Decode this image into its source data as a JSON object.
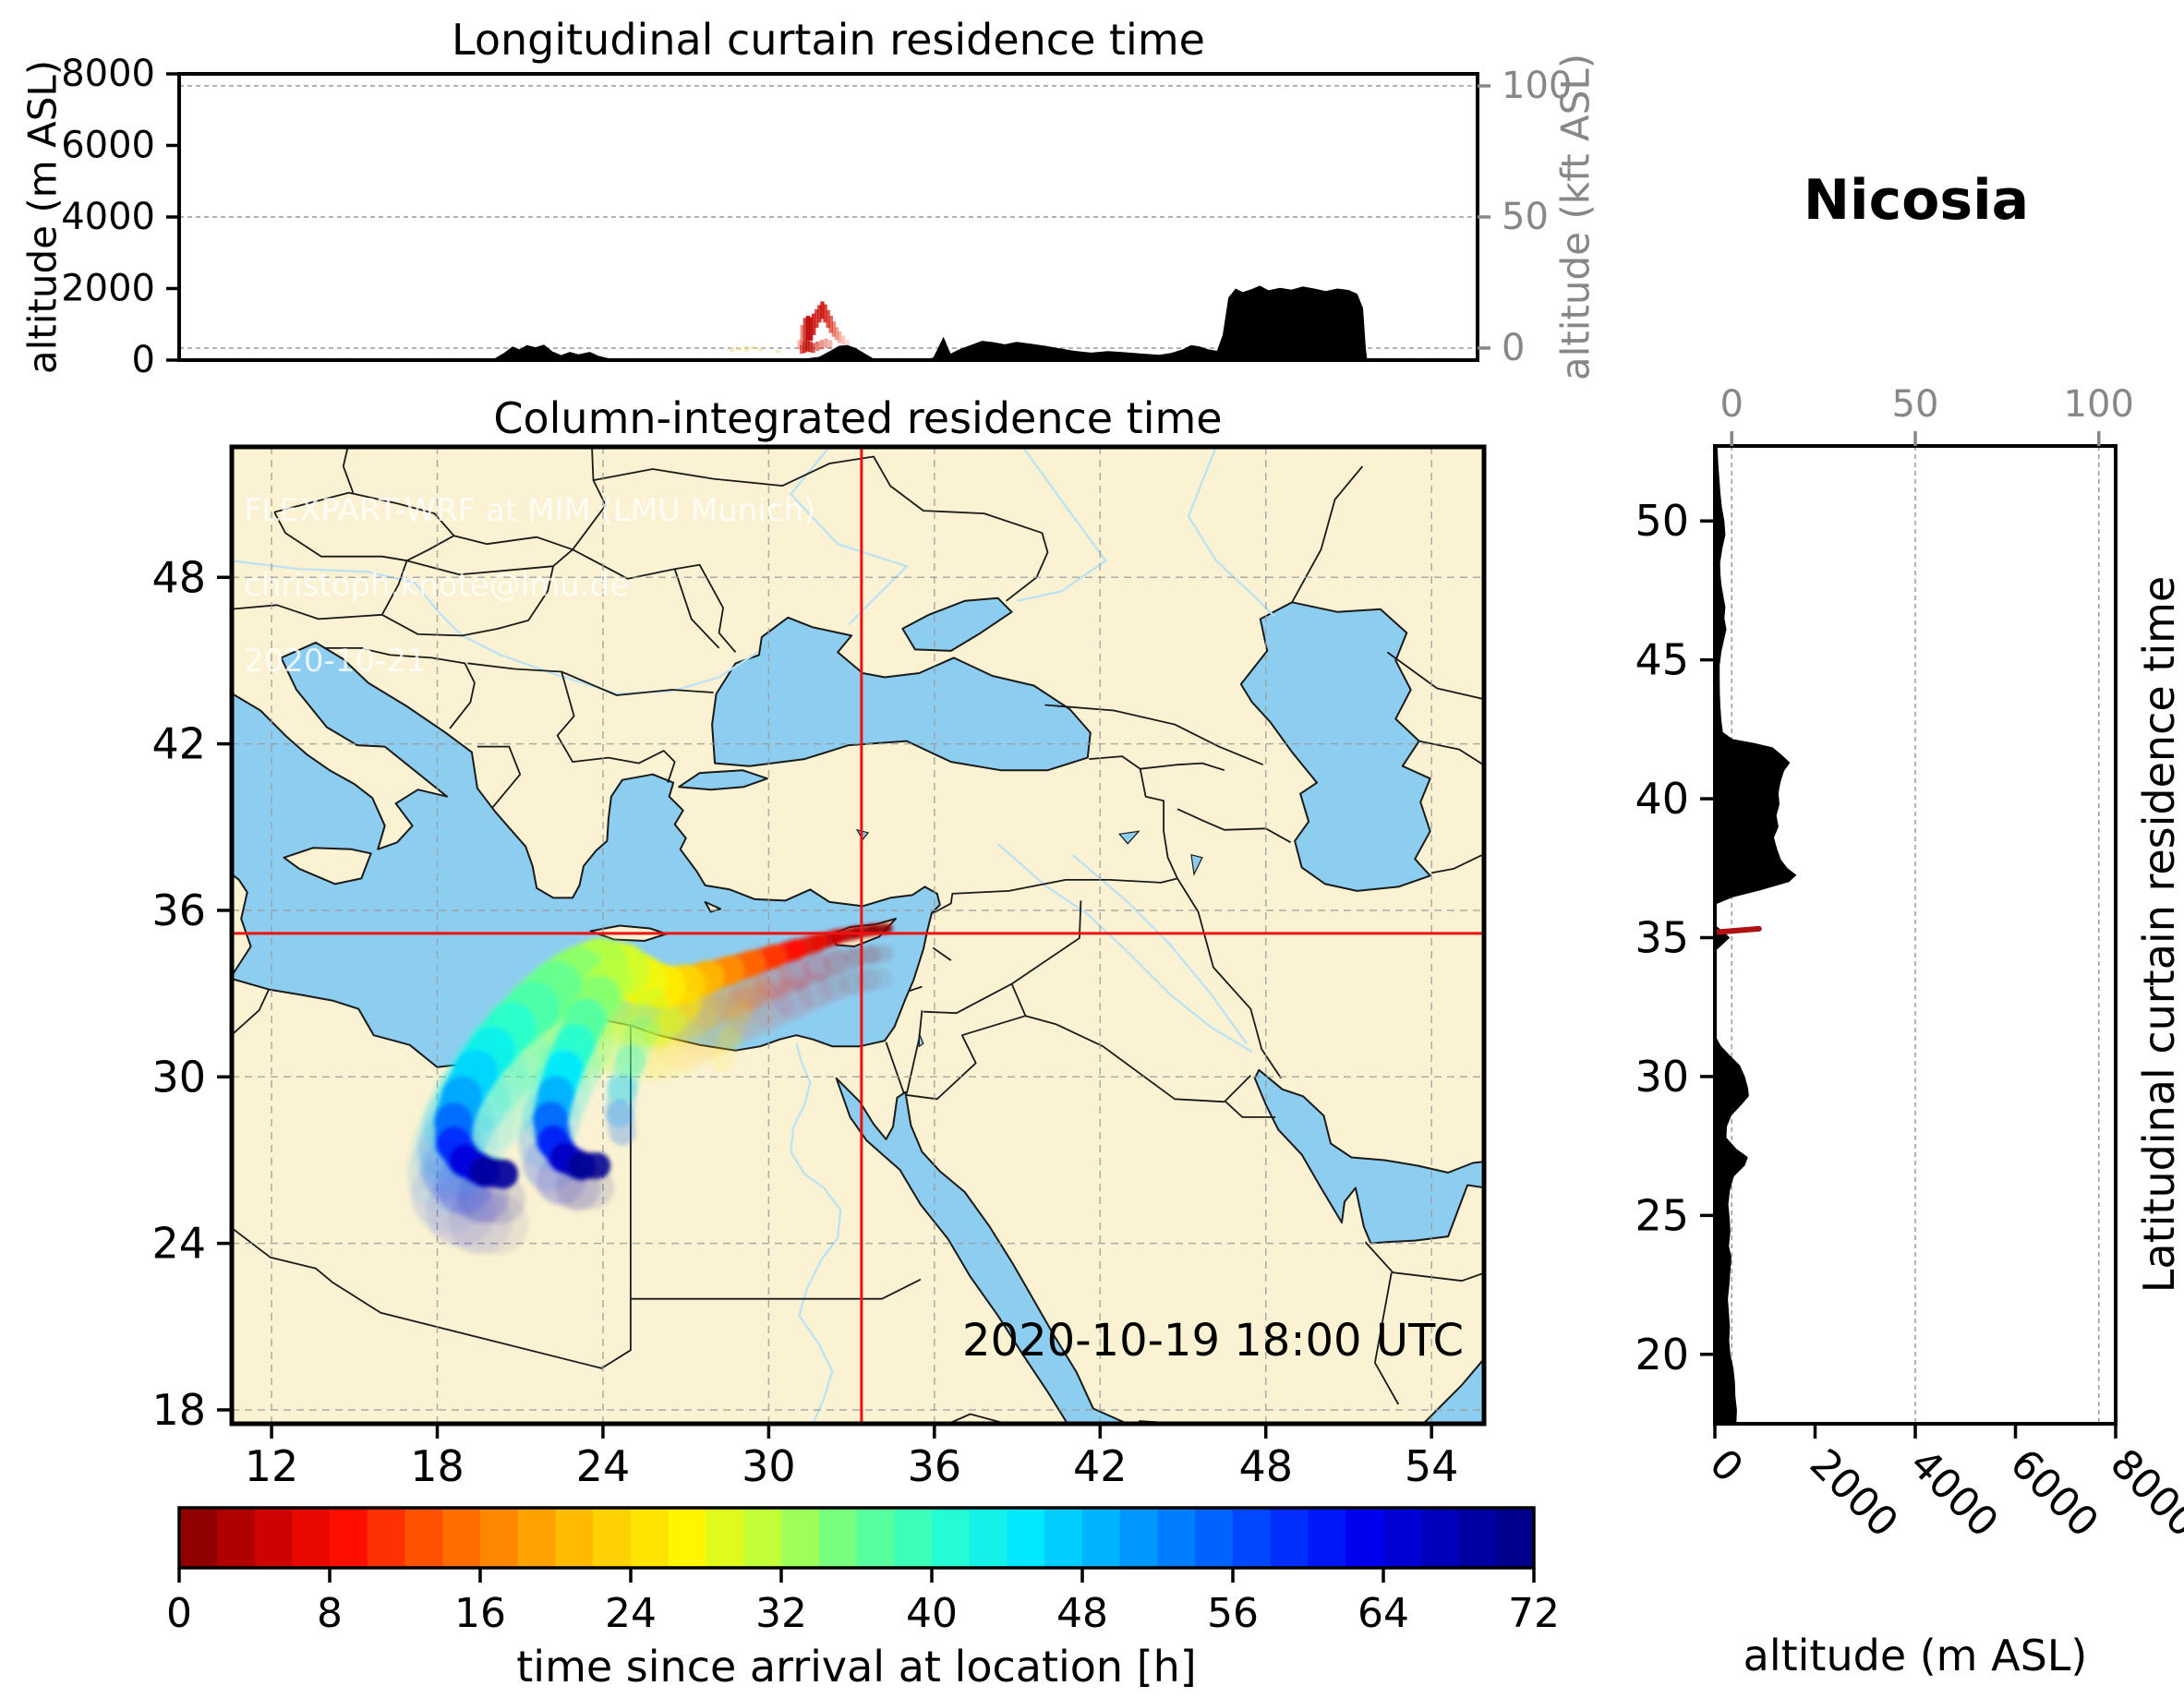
{
  "titles": {
    "longitudinal": "Longitudinal curtain residence time",
    "map": "Column-integrated residence time",
    "station": "Nicosia"
  },
  "watermark": {
    "line1": "FLEXPART-WRF at MIM (LMU Munich)",
    "line2": "christoph.knote@lmu.de",
    "line3": "2020-10-21"
  },
  "timestamp": "2020-10-19 18:00 UTC",
  "axes": {
    "alt_m_label": "altitude (m ASL)",
    "alt_kft_label": "altitude (kft ASL)",
    "alt_m_label_right": "altitude (m ASL)",
    "lat_curtain_label": "Latitudinal curtain residence time"
  },
  "colorbar": {
    "label": "time since arrival at location [h]",
    "ticks": [
      0,
      8,
      16,
      24,
      32,
      40,
      48,
      56,
      64,
      72
    ],
    "min": 0,
    "max": 72,
    "n_cells": 36
  },
  "colors": {
    "land": "#faf2d2",
    "water": "#8dcef0",
    "river": "#b9e2f6",
    "border": "#1a1a1a",
    "grid": "#9a9a9a",
    "crosshair": "#ee1111",
    "terrain": "#000000",
    "kft_axis": "#878787",
    "frame": "#000000"
  },
  "chart_data": {
    "type": "residence_time_dispersion_figure",
    "station": {
      "name": "Nicosia",
      "lon": 33.36,
      "lat": 35.17
    },
    "timestamp": "2020-10-19 18:00 UTC",
    "map": {
      "lon_range": [
        10.56,
        55.9
      ],
      "lat_range": [
        17.5,
        52.7
      ],
      "lon_ticks": [
        12,
        18,
        24,
        30,
        36,
        42,
        48,
        54
      ],
      "lat_ticks": [
        18,
        24,
        30,
        36,
        42,
        48
      ],
      "crosshair": {
        "lon": 33.36,
        "lat": 35.17
      }
    },
    "altitude_axis": {
      "range_m": [
        0,
        8000
      ],
      "ticks_m": [
        0,
        2000,
        4000,
        6000,
        8000
      ],
      "ticks_kft": [
        0,
        50,
        100
      ],
      "kft_fracs": [
        0.042,
        0.5,
        0.958
      ]
    },
    "lat_profile_ticks": [
      20,
      25,
      30,
      35,
      40,
      45,
      50
    ],
    "colormap_stops": [
      [
        0,
        "#800000"
      ],
      [
        4.5,
        "#c80000"
      ],
      [
        9,
        "#ff1000"
      ],
      [
        13.5,
        "#ff5a00"
      ],
      [
        18,
        "#ff9400"
      ],
      [
        22.5,
        "#ffce00"
      ],
      [
        27,
        "#fff600"
      ],
      [
        31.5,
        "#baff3c"
      ],
      [
        36,
        "#64ff90"
      ],
      [
        40.5,
        "#28ffcd"
      ],
      [
        45,
        "#00e8ff"
      ],
      [
        49.5,
        "#00acff"
      ],
      [
        54,
        "#0070ff"
      ],
      [
        58.5,
        "#0034ff"
      ],
      [
        63,
        "#0000f0"
      ],
      [
        67.5,
        "#0000b4"
      ],
      [
        72,
        "#000080"
      ]
    ],
    "terrain_longitudinal": [
      [
        10.56,
        0
      ],
      [
        21.2,
        0
      ],
      [
        21.6,
        60
      ],
      [
        21.9,
        200
      ],
      [
        22.2,
        380
      ],
      [
        22.45,
        300
      ],
      [
        22.7,
        420
      ],
      [
        23.0,
        360
      ],
      [
        23.3,
        430
      ],
      [
        23.6,
        240
      ],
      [
        23.9,
        140
      ],
      [
        24.2,
        230
      ],
      [
        24.5,
        160
      ],
      [
        24.9,
        230
      ],
      [
        25.2,
        120
      ],
      [
        25.6,
        40
      ],
      [
        26.0,
        0
      ],
      [
        31.9,
        0
      ],
      [
        32.3,
        30
      ],
      [
        32.9,
        90
      ],
      [
        33.3,
        260
      ],
      [
        33.6,
        400
      ],
      [
        33.9,
        420
      ],
      [
        34.2,
        330
      ],
      [
        34.6,
        140
      ],
      [
        34.9,
        0
      ],
      [
        36.7,
        0
      ],
      [
        36.9,
        80
      ],
      [
        37.25,
        650
      ],
      [
        37.5,
        180
      ],
      [
        37.8,
        300
      ],
      [
        38.2,
        420
      ],
      [
        38.6,
        540
      ],
      [
        39.0,
        500
      ],
      [
        39.4,
        440
      ],
      [
        39.8,
        510
      ],
      [
        40.3,
        460
      ],
      [
        40.8,
        400
      ],
      [
        41.3,
        330
      ],
      [
        41.8,
        260
      ],
      [
        42.4,
        210
      ],
      [
        43.0,
        250
      ],
      [
        43.6,
        220
      ],
      [
        44.2,
        180
      ],
      [
        44.8,
        150
      ],
      [
        45.2,
        200
      ],
      [
        45.6,
        300
      ],
      [
        45.9,
        420
      ],
      [
        46.2,
        380
      ],
      [
        46.5,
        300
      ],
      [
        46.8,
        260
      ],
      [
        47.0,
        700
      ],
      [
        47.2,
        1750
      ],
      [
        47.45,
        2000
      ],
      [
        47.7,
        1900
      ],
      [
        48.0,
        1980
      ],
      [
        48.3,
        2080
      ],
      [
        48.6,
        1950
      ],
      [
        49.0,
        2020
      ],
      [
        49.4,
        1970
      ],
      [
        49.8,
        2060
      ],
      [
        50.2,
        2000
      ],
      [
        50.6,
        1930
      ],
      [
        51.0,
        2000
      ],
      [
        51.4,
        1960
      ],
      [
        51.7,
        1850
      ],
      [
        51.9,
        1450
      ],
      [
        52.0,
        300
      ],
      [
        52.05,
        0
      ],
      [
        55.9,
        0
      ]
    ],
    "terrain_latitudinal": [
      [
        17.5,
        430
      ],
      [
        18.0,
        440
      ],
      [
        18.5,
        410
      ],
      [
        19.0,
        400
      ],
      [
        19.5,
        370
      ],
      [
        20.0,
        310
      ],
      [
        20.5,
        285
      ],
      [
        21.0,
        300
      ],
      [
        21.5,
        280
      ],
      [
        22.0,
        260
      ],
      [
        22.5,
        290
      ],
      [
        23.0,
        310
      ],
      [
        23.5,
        330
      ],
      [
        23.9,
        280
      ],
      [
        24.4,
        310
      ],
      [
        24.9,
        295
      ],
      [
        25.4,
        270
      ],
      [
        25.9,
        300
      ],
      [
        26.4,
        380
      ],
      [
        26.8,
        600
      ],
      [
        27.1,
        660
      ],
      [
        27.4,
        430
      ],
      [
        27.8,
        230
      ],
      [
        28.2,
        240
      ],
      [
        28.6,
        330
      ],
      [
        29.0,
        540
      ],
      [
        29.3,
        680
      ],
      [
        29.6,
        660
      ],
      [
        30.0,
        600
      ],
      [
        30.4,
        500
      ],
      [
        30.8,
        280
      ],
      [
        31.1,
        120
      ],
      [
        31.4,
        30
      ],
      [
        31.7,
        0
      ],
      [
        34.5,
        0
      ],
      [
        34.8,
        180
      ],
      [
        35.0,
        300
      ],
      [
        35.2,
        180
      ],
      [
        35.4,
        40
      ],
      [
        35.7,
        0
      ],
      [
        36.2,
        20
      ],
      [
        36.45,
        350
      ],
      [
        36.7,
        900
      ],
      [
        37.0,
        1480
      ],
      [
        37.25,
        1630
      ],
      [
        37.5,
        1450
      ],
      [
        37.8,
        1320
      ],
      [
        38.2,
        1240
      ],
      [
        38.6,
        1180
      ],
      [
        39.0,
        1270
      ],
      [
        39.4,
        1230
      ],
      [
        39.8,
        1290
      ],
      [
        40.2,
        1270
      ],
      [
        40.6,
        1310
      ],
      [
        41.0,
        1380
      ],
      [
        41.3,
        1500
      ],
      [
        41.6,
        1320
      ],
      [
        41.85,
        1150
      ],
      [
        42.0,
        800
      ],
      [
        42.15,
        350
      ],
      [
        42.4,
        160
      ],
      [
        42.8,
        130
      ],
      [
        43.3,
        110
      ],
      [
        43.8,
        100
      ],
      [
        44.3,
        95
      ],
      [
        44.8,
        95
      ],
      [
        45.3,
        130
      ],
      [
        45.7,
        180
      ],
      [
        46.1,
        230
      ],
      [
        46.5,
        190
      ],
      [
        46.9,
        210
      ],
      [
        47.3,
        170
      ],
      [
        47.7,
        130
      ],
      [
        48.1,
        110
      ],
      [
        48.5,
        105
      ],
      [
        49.0,
        150
      ],
      [
        49.5,
        210
      ],
      [
        50.0,
        190
      ],
      [
        50.5,
        140
      ],
      [
        51.0,
        110
      ],
      [
        51.5,
        90
      ],
      [
        52.0,
        70
      ],
      [
        52.7,
        50
      ]
    ],
    "curtain_columns": [
      [
        32.22,
        300,
        560,
        "#e86050",
        0.45
      ],
      [
        32.32,
        420,
        980,
        "#e04030",
        0.6
      ],
      [
        32.42,
        520,
        1180,
        "#cc1810",
        0.8
      ],
      [
        32.52,
        560,
        1240,
        "#b80000",
        0.9
      ],
      [
        32.62,
        540,
        1200,
        "#c00000",
        0.9
      ],
      [
        32.72,
        700,
        1300,
        "#c81008",
        0.85
      ],
      [
        32.82,
        900,
        1420,
        "#d01810",
        0.8
      ],
      [
        32.92,
        1050,
        1540,
        "#cc0f08",
        0.8
      ],
      [
        33.02,
        1150,
        1640,
        "#c80800",
        0.85
      ],
      [
        33.12,
        1050,
        1560,
        "#d01810",
        0.8
      ],
      [
        33.22,
        900,
        1400,
        "#d42015",
        0.75
      ],
      [
        33.32,
        760,
        1240,
        "#dd2a1a",
        0.7
      ],
      [
        33.42,
        650,
        1080,
        "#e23a25",
        0.6
      ],
      [
        33.52,
        560,
        920,
        "#e84a32",
        0.5
      ],
      [
        33.62,
        480,
        800,
        "#ee5a40",
        0.45
      ],
      [
        33.75,
        420,
        680,
        "#f06a50",
        0.35
      ],
      [
        33.9,
        360,
        560,
        "#f47a60",
        0.3
      ],
      [
        32.3,
        180,
        420,
        "#d02010",
        0.7
      ],
      [
        32.4,
        200,
        520,
        "#c41008",
        0.8
      ],
      [
        32.5,
        240,
        560,
        "#bc0800",
        0.85
      ],
      [
        32.6,
        220,
        520,
        "#c41008",
        0.8
      ],
      [
        32.7,
        200,
        480,
        "#cc1810",
        0.7
      ],
      [
        32.85,
        260,
        520,
        "#d42418",
        0.6
      ],
      [
        33.0,
        300,
        560,
        "#dc3020",
        0.5
      ],
      [
        33.15,
        340,
        600,
        "#e03828",
        0.45
      ],
      [
        33.3,
        320,
        560,
        "#e64434",
        0.4
      ]
    ],
    "yellow_flecks": [
      [
        29.85,
        230,
        350
      ],
      [
        30.1,
        260,
        360
      ],
      [
        30.35,
        240,
        380
      ],
      [
        30.6,
        300,
        390
      ],
      [
        30.85,
        260,
        340
      ],
      [
        31.45,
        200,
        280
      ]
    ],
    "lat_curtain_marker": {
      "lat1": 35.2,
      "alt1": 60,
      "lat2": 35.32,
      "alt2": 880,
      "color": "#b01010"
    },
    "plume": {
      "paths": [
        {
          "name": "main-band",
          "opacity": 0.92,
          "ghosts": [
            {
              "dlon": -0.1,
              "dlat": -0.9,
              "wmul": 1.7,
              "op": 0.13
            },
            {
              "dlon": -0.2,
              "dlat": -1.8,
              "wmul": 2.1,
              "op": 0.07
            }
          ],
          "points": [
            [
              34.3,
              35.35,
              0,
              0.35
            ],
            [
              33.8,
              35.3,
              1,
              0.4
            ],
            [
              33.2,
              35.2,
              2,
              0.45
            ],
            [
              32.5,
              35.05,
              4,
              0.5
            ],
            [
              31.8,
              34.85,
              6,
              0.6
            ],
            [
              31.0,
              34.6,
              8,
              0.7
            ],
            [
              30.2,
              34.35,
              10,
              0.8
            ],
            [
              29.4,
              34.1,
              13,
              0.9
            ],
            [
              28.6,
              33.85,
              16,
              1.0
            ],
            [
              27.8,
              33.6,
              19,
              1.1
            ],
            [
              27.0,
              33.35,
              22,
              1.3
            ],
            [
              26.2,
              33.25,
              25,
              1.5
            ],
            [
              25.4,
              33.5,
              27,
              1.7
            ],
            [
              24.7,
              33.85,
              29,
              1.9
            ],
            [
              23.9,
              34.0,
              31,
              2.0
            ],
            [
              23.1,
              33.7,
              33,
              2.0
            ],
            [
              22.3,
              33.2,
              35,
              2.0
            ],
            [
              21.5,
              32.5,
              37,
              1.9
            ],
            [
              20.7,
              31.8,
              39,
              1.8
            ],
            [
              20.0,
              31.0,
              42,
              1.7
            ],
            [
              19.4,
              30.2,
              45,
              1.6
            ],
            [
              18.9,
              29.3,
              48,
              1.5
            ],
            [
              18.6,
              28.4,
              52,
              1.4
            ],
            [
              18.6,
              27.6,
              57,
              1.3
            ],
            [
              19.0,
              27.0,
              62,
              1.2
            ],
            [
              19.7,
              26.6,
              67,
              1.1
            ],
            [
              20.4,
              26.5,
              72,
              1.0
            ]
          ]
        },
        {
          "name": "south-branch",
          "opacity": 0.88,
          "ghosts": [
            {
              "dlon": -0.15,
              "dlat": -0.8,
              "wmul": 1.6,
              "op": 0.12
            }
          ],
          "points": [
            [
              24.3,
              33.5,
              30,
              1.5
            ],
            [
              23.9,
              32.9,
              33,
              1.5
            ],
            [
              23.4,
              32.1,
              36,
              1.5
            ],
            [
              23.0,
              31.2,
              39,
              1.4
            ],
            [
              22.6,
              30.3,
              43,
              1.4
            ],
            [
              22.3,
              29.4,
              47,
              1.3
            ],
            [
              22.1,
              28.5,
              52,
              1.3
            ],
            [
              22.2,
              27.7,
              58,
              1.2
            ],
            [
              22.6,
              27.1,
              64,
              1.1
            ],
            [
              23.2,
              26.8,
              69,
              1.0
            ],
            [
              23.8,
              26.8,
              72,
              0.9
            ]
          ]
        },
        {
          "name": "mid-faint-tail",
          "opacity": 0.25,
          "ghosts": [],
          "points": [
            [
              25.8,
              32.6,
              30,
              1.2
            ],
            [
              25.4,
              31.6,
              35,
              1.2
            ],
            [
              25.0,
              30.6,
              40,
              1.1
            ],
            [
              24.7,
              29.6,
              46,
              1.1
            ],
            [
              24.6,
              28.7,
              52,
              1.0
            ],
            [
              24.7,
              28.0,
              58,
              0.9
            ]
          ]
        },
        {
          "name": "green-finger",
          "opacity": 0.35,
          "ghosts": [],
          "points": [
            [
              27.6,
              33.3,
              20,
              0.8
            ],
            [
              27.1,
              32.6,
              24,
              0.9
            ],
            [
              26.5,
              32.0,
              28,
              1.0
            ],
            [
              26.0,
              31.5,
              32,
              0.9
            ]
          ]
        },
        {
          "name": "egypt-wisp",
          "opacity": 0.13,
          "ghosts": [],
          "points": [
            [
              29.5,
              33.2,
              16,
              0.7
            ],
            [
              29.0,
              32.3,
              20,
              0.8
            ],
            [
              28.6,
              31.4,
              24,
              0.8
            ],
            [
              28.3,
              30.6,
              28,
              0.8
            ]
          ]
        }
      ]
    }
  }
}
